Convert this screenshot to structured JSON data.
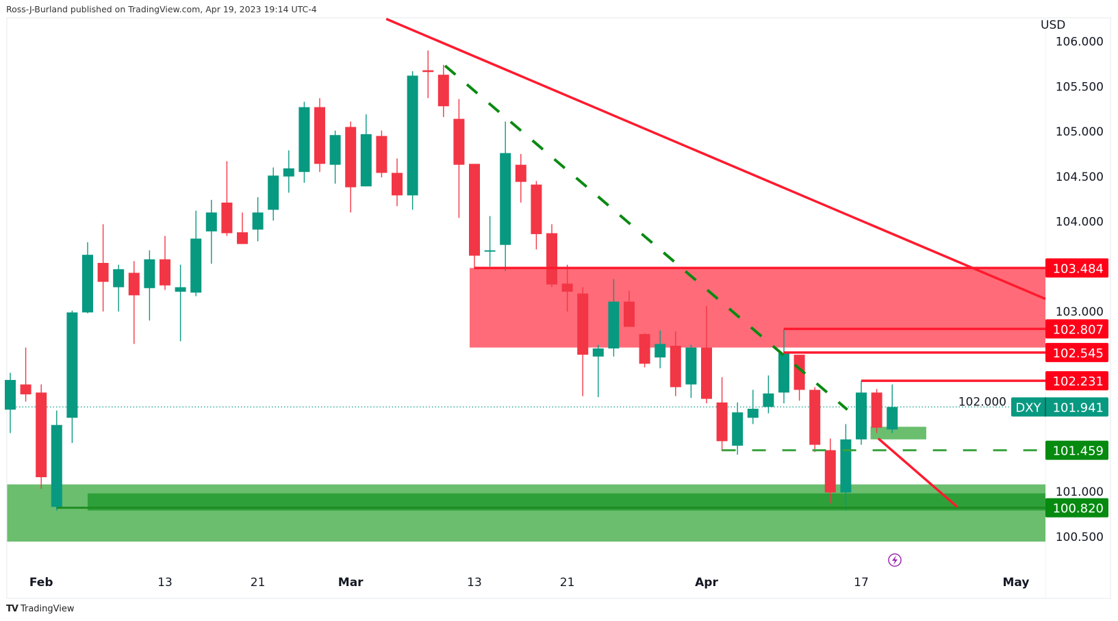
{
  "header": {
    "text": "Ross-J-Burland published on TradingView.com, Apr 19, 2023 19:14 UTC-4"
  },
  "footer": {
    "logo": "TV",
    "brand": "TradingView"
  },
  "colors": {
    "up": "#089981",
    "down": "#F23645",
    "line_red": "#FF1A2E",
    "zone_red": "#FF6B78",
    "zone_green": "#6ABE6E",
    "band_green": "#2EA03A",
    "label_red": "#FF0019",
    "label_green": "#068A10"
  },
  "chart_data": {
    "type": "candlestick",
    "symbol": "DXY",
    "currency": "USD",
    "last_price": "101.941",
    "ylim": [
      100.3,
      106.35
    ],
    "x_unit": "bar index (daily)",
    "y_ticks": [
      {
        "value": 106.0,
        "label": "106.000"
      },
      {
        "value": 105.5,
        "label": "105.500"
      },
      {
        "value": 105.0,
        "label": "105.000"
      },
      {
        "value": 104.5,
        "label": "104.500"
      },
      {
        "value": 104.0,
        "label": "104.000"
      },
      {
        "value": 103.0,
        "label": "103.000"
      },
      {
        "value": 102.0,
        "label": "102.000"
      },
      {
        "value": 101.0,
        "label": "101.000"
      },
      {
        "value": 100.5,
        "label": "100.500"
      }
    ],
    "x_ticks": [
      {
        "index": 2,
        "label": "Feb",
        "bold": true
      },
      {
        "index": 10,
        "label": "13"
      },
      {
        "index": 16,
        "label": "21"
      },
      {
        "index": 22,
        "label": "Mar",
        "bold": true
      },
      {
        "index": 30,
        "label": "13"
      },
      {
        "index": 36,
        "label": "21"
      },
      {
        "index": 45,
        "label": "Apr",
        "bold": true
      },
      {
        "index": 55,
        "label": "17"
      },
      {
        "index": 65,
        "label": "May",
        "bold": true
      }
    ],
    "candles_ohlc": [
      [
        101.91,
        102.32,
        101.65,
        102.24
      ],
      [
        102.19,
        102.6,
        102.0,
        102.08
      ],
      [
        102.1,
        102.19,
        101.03,
        101.16
      ],
      [
        100.83,
        101.9,
        100.79,
        101.74
      ],
      [
        101.82,
        103.01,
        101.54,
        102.99
      ],
      [
        102.99,
        103.77,
        102.98,
        103.63
      ],
      [
        103.54,
        103.97,
        103.0,
        103.33
      ],
      [
        103.27,
        103.52,
        103.0,
        103.47
      ],
      [
        103.43,
        103.56,
        102.64,
        103.18
      ],
      [
        103.26,
        103.68,
        102.9,
        103.58
      ],
      [
        103.58,
        103.84,
        103.24,
        103.29
      ],
      [
        103.22,
        103.52,
        102.67,
        103.27
      ],
      [
        103.21,
        104.12,
        103.17,
        103.81
      ],
      [
        103.89,
        104.24,
        103.53,
        104.1
      ],
      [
        104.21,
        104.67,
        103.84,
        103.87
      ],
      [
        103.88,
        104.1,
        103.75,
        103.75
      ],
      [
        103.91,
        104.27,
        103.78,
        104.1
      ],
      [
        104.13,
        104.6,
        104.01,
        104.51
      ],
      [
        104.5,
        104.79,
        104.32,
        104.59
      ],
      [
        104.55,
        105.33,
        104.43,
        105.27
      ],
      [
        105.27,
        105.37,
        104.55,
        104.64
      ],
      [
        104.63,
        105.01,
        104.42,
        104.96
      ],
      [
        105.05,
        105.11,
        104.1,
        104.38
      ],
      [
        104.39,
        105.19,
        104.39,
        104.97
      ],
      [
        104.95,
        105.01,
        104.49,
        104.54
      ],
      [
        104.54,
        104.7,
        104.17,
        104.29
      ],
      [
        104.29,
        105.67,
        104.13,
        105.62
      ],
      [
        105.68,
        105.9,
        105.37,
        105.66
      ],
      [
        105.63,
        105.74,
        105.16,
        105.28
      ],
      [
        105.14,
        105.36,
        104.04,
        104.63
      ],
      [
        104.64,
        104.64,
        103.47,
        103.62
      ],
      [
        103.67,
        104.06,
        103.5,
        103.68
      ],
      [
        103.74,
        105.11,
        103.45,
        104.76
      ],
      [
        104.63,
        104.75,
        104.21,
        104.44
      ],
      [
        104.41,
        104.45,
        103.69,
        103.86
      ],
      [
        103.87,
        103.97,
        103.27,
        103.3
      ],
      [
        103.31,
        103.52,
        103.0,
        103.22
      ],
      [
        103.2,
        103.27,
        102.06,
        102.52
      ],
      [
        102.5,
        102.63,
        102.05,
        102.59
      ],
      [
        102.59,
        103.36,
        102.5,
        103.11
      ],
      [
        103.11,
        103.23,
        102.83,
        102.83
      ],
      [
        102.75,
        102.76,
        102.38,
        102.42
      ],
      [
        102.49,
        102.79,
        102.37,
        102.64
      ],
      [
        102.62,
        102.78,
        102.06,
        102.16
      ],
      [
        102.19,
        102.63,
        102.04,
        102.6
      ],
      [
        102.6,
        103.06,
        101.98,
        102.03
      ],
      [
        101.99,
        102.27,
        101.45,
        101.56
      ],
      [
        101.51,
        101.99,
        101.41,
        101.88
      ],
      [
        101.82,
        102.13,
        101.75,
        101.92
      ],
      [
        101.94,
        102.29,
        101.87,
        102.09
      ],
      [
        102.1,
        102.81,
        101.98,
        102.54
      ],
      [
        102.52,
        102.52,
        102.01,
        102.13
      ],
      [
        102.13,
        102.16,
        101.44,
        101.52
      ],
      [
        101.46,
        101.59,
        100.87,
        100.99
      ],
      [
        100.99,
        101.75,
        100.79,
        101.58
      ],
      [
        101.58,
        102.23,
        101.52,
        102.1
      ],
      [
        102.1,
        102.14,
        101.65,
        101.71
      ],
      [
        101.69,
        102.19,
        101.65,
        101.94
      ]
    ],
    "drawings": {
      "red_trendline": {
        "from": [
          24.3,
          106.25
        ],
        "to": [
          66.9,
          103.14
        ]
      },
      "green_dashed_trendline": {
        "from": [
          28.1,
          105.73
        ],
        "to": [
          54.1,
          101.91
        ]
      },
      "red_zone": {
        "from_index": 30,
        "top": 103.484,
        "bottom": 102.6
      },
      "green_zone": {
        "from_index": -0.2,
        "top": 101.08,
        "bottom": 100.445
      },
      "green_band": {
        "from_index": 5,
        "top": 100.98,
        "bottom": 100.79
      },
      "small_green_box": {
        "from_index": 55.6,
        "to_index": 59.2,
        "top": 101.72,
        "bottom": 101.58
      },
      "red_projection": {
        "from": [
          56.1,
          101.59
        ],
        "to": [
          61.2,
          100.83
        ]
      },
      "levels": [
        {
          "price": 103.484,
          "label": "103.484",
          "from_index": 30,
          "kind": "red"
        },
        {
          "price": 102.807,
          "label": "102.807",
          "from_index": 50,
          "kind": "red"
        },
        {
          "price": 102.545,
          "label": "102.545",
          "from_index": 50,
          "kind": "red"
        },
        {
          "price": 102.231,
          "label": "102.231",
          "from_index": 55,
          "kind": "red"
        },
        {
          "price": 101.459,
          "label": "101.459",
          "from_index": 46,
          "kind": "green-dashed"
        },
        {
          "price": 100.82,
          "label": "100.820",
          "from_index": 3,
          "kind": "green"
        }
      ]
    }
  }
}
